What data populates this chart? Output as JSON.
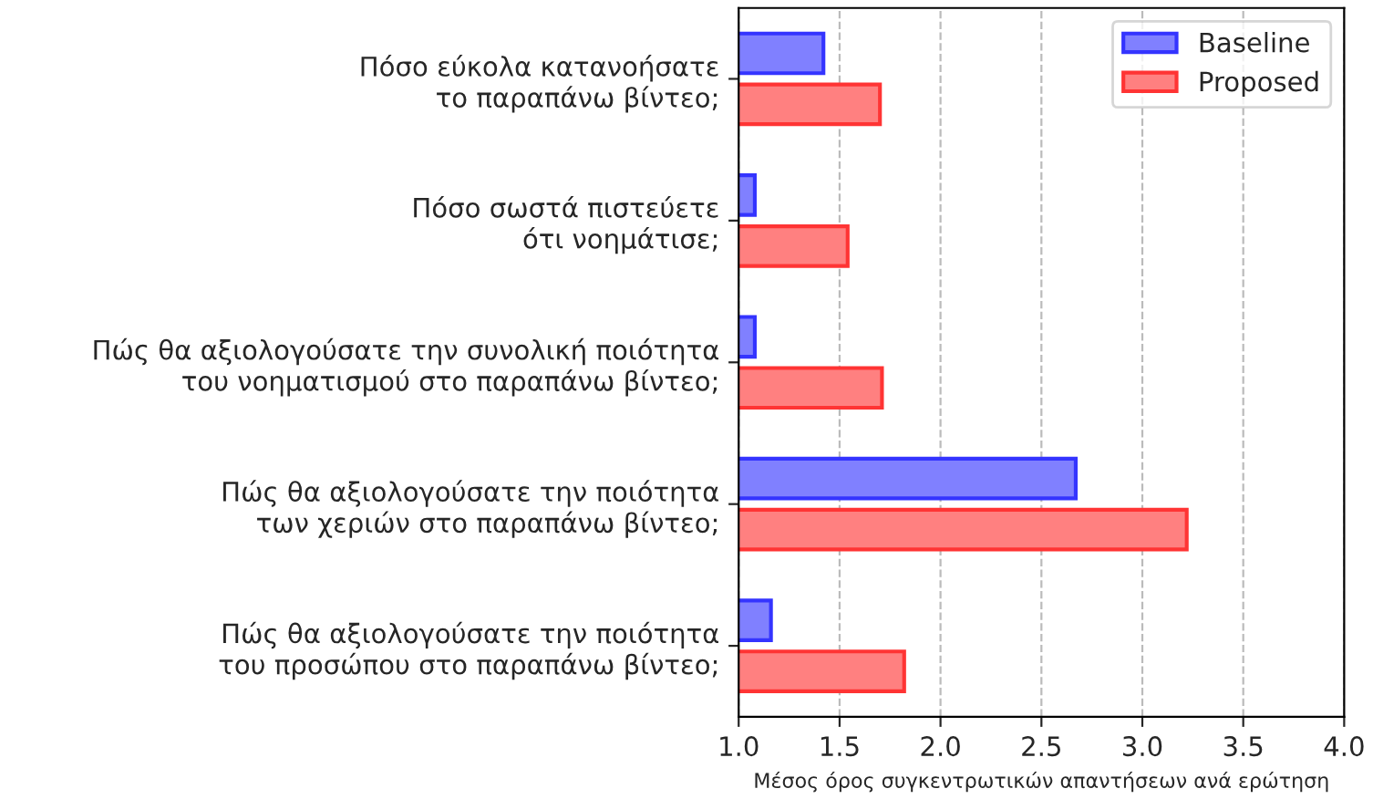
{
  "chart_data": {
    "type": "bar",
    "orientation": "horizontal",
    "xlabel": "Μέσος όρος συγκεντρωτικών απαντήσεων ανά ερώτηση",
    "categories": [
      "Πόσο εύκολα κατανοήσατε\nτο παραπάνω βίντεο;",
      "Πόσο σωστά πιστεύετε\nότι νοημάτισε;",
      "Πώς θα αξιολογούσατε την συνολική ποιότητα\nτου νοηματισμού στο παραπάνω βίντεο;",
      "Πώς θα αξιολογούσατε την ποιότητα\nτων χεριών στο παραπάνω βίντεο;",
      "Πώς θα αξιολογούσατε την ποιότητα\nτου προσώπου στο παραπάνω βίντεο;"
    ],
    "series": [
      {
        "name": "Baseline",
        "color": "#8080ff",
        "values": [
          1.42,
          1.08,
          1.08,
          2.67,
          1.16
        ]
      },
      {
        "name": "Proposed",
        "color": "#ff8080",
        "values": [
          1.7,
          1.54,
          1.71,
          3.22,
          1.82
        ]
      }
    ],
    "xlim": [
      1.0,
      4.0
    ],
    "xticks": [
      {
        "value": 1.0,
        "label": "1.0"
      },
      {
        "value": 1.5,
        "label": "1.5"
      },
      {
        "value": 2.0,
        "label": "2.0"
      },
      {
        "value": 2.5,
        "label": "2.5"
      },
      {
        "value": 3.0,
        "label": "3.0"
      },
      {
        "value": 3.5,
        "label": "3.5"
      },
      {
        "value": 4.0,
        "label": "4.0"
      }
    ],
    "grid": "x",
    "line_style": "dashed",
    "legend": "top right"
  }
}
